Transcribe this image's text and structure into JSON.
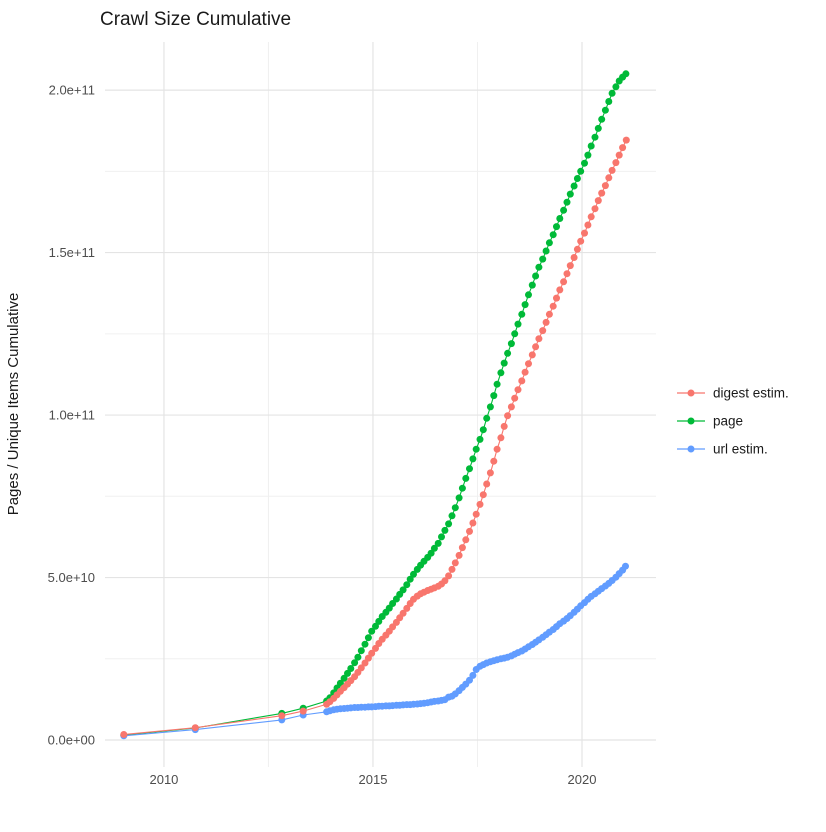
{
  "chart_data": {
    "type": "line",
    "title": "Crawl Size Cumulative",
    "xlabel": "",
    "ylabel": "Pages / Unique Items Cumulative",
    "unit": "pages, values stored in billions (1e9)",
    "grid": "on",
    "legend_position": "right",
    "xlim": [
      2008.59,
      2021.77
    ],
    "ylim_e9": [
      -8.3,
      214.8
    ],
    "x_ticks": [
      {
        "label": "2010",
        "value": 2010
      },
      {
        "label": "2015",
        "value": 2015
      },
      {
        "label": "2020",
        "value": 2020
      }
    ],
    "y_ticks": [
      {
        "label": "0.0e+00",
        "value": 0
      },
      {
        "label": "5.0e+10",
        "value": 50
      },
      {
        "label": "1.0e+11",
        "value": 100
      },
      {
        "label": "1.5e+11",
        "value": 150
      },
      {
        "label": "2.0e+11",
        "value": 200
      }
    ],
    "x_minor_ticks": [
      2012.5,
      2017.5
    ],
    "y_minor_ticks": [
      25,
      75,
      125,
      175
    ],
    "legend": {
      "items": [
        {
          "label": "digest estim.",
          "color": "#F8766D"
        },
        {
          "label": "page",
          "color": "#00BA38"
        },
        {
          "label": "url estim.",
          "color": "#619CFF"
        }
      ]
    },
    "series": [
      {
        "name": "page",
        "color": "#00BA38",
        "points": [
          [
            2009.04,
            1.5
          ],
          [
            2010.75,
            3.7
          ],
          [
            2012.82,
            8.2
          ],
          [
            2013.33,
            9.8
          ],
          [
            2013.89,
            12.0
          ],
          [
            2013.97,
            13.0
          ],
          [
            2014.06,
            14.5
          ],
          [
            2014.14,
            16.0
          ],
          [
            2014.22,
            17.5
          ],
          [
            2014.31,
            19.0
          ],
          [
            2014.39,
            20.5
          ],
          [
            2014.47,
            22.0
          ],
          [
            2014.56,
            23.8
          ],
          [
            2014.64,
            25.5
          ],
          [
            2014.72,
            27.5
          ],
          [
            2014.81,
            29.5
          ],
          [
            2014.89,
            31.5
          ],
          [
            2014.97,
            33.5
          ],
          [
            2015.06,
            35.0
          ],
          [
            2015.14,
            36.5
          ],
          [
            2015.22,
            38.0
          ],
          [
            2015.31,
            39.3
          ],
          [
            2015.39,
            40.6
          ],
          [
            2015.47,
            42.0
          ],
          [
            2015.56,
            43.4
          ],
          [
            2015.64,
            44.8
          ],
          [
            2015.72,
            46.2
          ],
          [
            2015.81,
            47.8
          ],
          [
            2015.89,
            49.5
          ],
          [
            2015.97,
            51.0
          ],
          [
            2016.06,
            52.5
          ],
          [
            2016.14,
            53.8
          ],
          [
            2016.22,
            55.0
          ],
          [
            2016.31,
            56.2
          ],
          [
            2016.39,
            57.5
          ],
          [
            2016.47,
            59.0
          ],
          [
            2016.56,
            60.5
          ],
          [
            2016.64,
            62.5
          ],
          [
            2016.72,
            64.5
          ],
          [
            2016.81,
            66.5
          ],
          [
            2016.89,
            69.0
          ],
          [
            2016.97,
            71.5
          ],
          [
            2017.06,
            74.5
          ],
          [
            2017.14,
            77.5
          ],
          [
            2017.22,
            80.5
          ],
          [
            2017.31,
            83.5
          ],
          [
            2017.39,
            86.5
          ],
          [
            2017.47,
            89.5
          ],
          [
            2017.56,
            92.5
          ],
          [
            2017.64,
            95.5
          ],
          [
            2017.72,
            99.0
          ],
          [
            2017.81,
            102.5
          ],
          [
            2017.89,
            106.0
          ],
          [
            2017.97,
            109.5
          ],
          [
            2018.06,
            113.0
          ],
          [
            2018.14,
            116.0
          ],
          [
            2018.22,
            119.0
          ],
          [
            2018.31,
            122.0
          ],
          [
            2018.39,
            125.0
          ],
          [
            2018.47,
            128.0
          ],
          [
            2018.56,
            131.0
          ],
          [
            2018.64,
            134.0
          ],
          [
            2018.72,
            137.0
          ],
          [
            2018.81,
            140.0
          ],
          [
            2018.89,
            142.8
          ],
          [
            2018.97,
            145.5
          ],
          [
            2019.06,
            148.0
          ],
          [
            2019.14,
            150.5
          ],
          [
            2019.22,
            153.0
          ],
          [
            2019.31,
            155.5
          ],
          [
            2019.39,
            158.0
          ],
          [
            2019.47,
            160.5
          ],
          [
            2019.56,
            163.0
          ],
          [
            2019.64,
            165.5
          ],
          [
            2019.72,
            168.0
          ],
          [
            2019.81,
            170.5
          ],
          [
            2019.89,
            172.8
          ],
          [
            2019.97,
            175.0
          ],
          [
            2020.06,
            177.5
          ],
          [
            2020.14,
            180.0
          ],
          [
            2020.22,
            182.8
          ],
          [
            2020.31,
            185.5
          ],
          [
            2020.39,
            188.2
          ],
          [
            2020.47,
            191.0
          ],
          [
            2020.56,
            193.8
          ],
          [
            2020.64,
            196.5
          ],
          [
            2020.72,
            199.0
          ],
          [
            2020.81,
            201.0
          ],
          [
            2020.89,
            202.8
          ],
          [
            2020.97,
            204.0
          ],
          [
            2021.05,
            205.0
          ]
        ]
      },
      {
        "name": "url estim.",
        "color": "#619CFF",
        "points": [
          [
            2009.04,
            1.3
          ],
          [
            2010.75,
            3.2
          ],
          [
            2012.82,
            6.2
          ],
          [
            2013.33,
            7.7
          ],
          [
            2013.89,
            8.7
          ],
          [
            2013.97,
            9.0
          ],
          [
            2014.06,
            9.3
          ],
          [
            2014.14,
            9.5
          ],
          [
            2014.22,
            9.6
          ],
          [
            2014.31,
            9.7
          ],
          [
            2014.39,
            9.8
          ],
          [
            2014.47,
            9.9
          ],
          [
            2014.56,
            10.0
          ],
          [
            2014.64,
            10.0
          ],
          [
            2014.72,
            10.1
          ],
          [
            2014.81,
            10.1
          ],
          [
            2014.89,
            10.2
          ],
          [
            2014.97,
            10.2
          ],
          [
            2015.06,
            10.3
          ],
          [
            2015.14,
            10.4
          ],
          [
            2015.22,
            10.4
          ],
          [
            2015.31,
            10.5
          ],
          [
            2015.39,
            10.5
          ],
          [
            2015.47,
            10.6
          ],
          [
            2015.56,
            10.7
          ],
          [
            2015.64,
            10.7
          ],
          [
            2015.72,
            10.8
          ],
          [
            2015.81,
            10.9
          ],
          [
            2015.89,
            10.9
          ],
          [
            2015.97,
            11.0
          ],
          [
            2016.06,
            11.1
          ],
          [
            2016.14,
            11.2
          ],
          [
            2016.22,
            11.3
          ],
          [
            2016.31,
            11.5
          ],
          [
            2016.39,
            11.7
          ],
          [
            2016.47,
            11.9
          ],
          [
            2016.56,
            12.0
          ],
          [
            2016.64,
            12.2
          ],
          [
            2016.72,
            12.4
          ],
          [
            2016.81,
            13.2
          ],
          [
            2016.89,
            13.5
          ],
          [
            2016.97,
            14.2
          ],
          [
            2017.06,
            15.2
          ],
          [
            2017.14,
            16.2
          ],
          [
            2017.22,
            17.2
          ],
          [
            2017.31,
            18.4
          ],
          [
            2017.39,
            19.9
          ],
          [
            2017.47,
            21.7
          ],
          [
            2017.56,
            22.7
          ],
          [
            2017.64,
            23.2
          ],
          [
            2017.72,
            23.7
          ],
          [
            2017.81,
            24.1
          ],
          [
            2017.89,
            24.4
          ],
          [
            2017.97,
            24.7
          ],
          [
            2018.06,
            25.0
          ],
          [
            2018.14,
            25.2
          ],
          [
            2018.22,
            25.5
          ],
          [
            2018.31,
            25.9
          ],
          [
            2018.39,
            26.4
          ],
          [
            2018.47,
            26.9
          ],
          [
            2018.56,
            27.4
          ],
          [
            2018.64,
            28.0
          ],
          [
            2018.72,
            28.7
          ],
          [
            2018.81,
            29.4
          ],
          [
            2018.89,
            30.1
          ],
          [
            2018.97,
            30.8
          ],
          [
            2019.06,
            31.6
          ],
          [
            2019.14,
            32.4
          ],
          [
            2019.22,
            33.2
          ],
          [
            2019.31,
            34.0
          ],
          [
            2019.39,
            34.9
          ],
          [
            2019.47,
            35.8
          ],
          [
            2019.56,
            36.6
          ],
          [
            2019.64,
            37.4
          ],
          [
            2019.72,
            38.3
          ],
          [
            2019.81,
            39.3
          ],
          [
            2019.89,
            40.3
          ],
          [
            2019.97,
            41.3
          ],
          [
            2020.06,
            42.3
          ],
          [
            2020.14,
            43.3
          ],
          [
            2020.22,
            44.2
          ],
          [
            2020.31,
            45.0
          ],
          [
            2020.39,
            45.8
          ],
          [
            2020.47,
            46.6
          ],
          [
            2020.56,
            47.4
          ],
          [
            2020.64,
            48.2
          ],
          [
            2020.72,
            49.1
          ],
          [
            2020.81,
            50.1
          ],
          [
            2020.89,
            51.2
          ],
          [
            2020.97,
            52.3
          ],
          [
            2021.04,
            53.5
          ]
        ]
      },
      {
        "name": "digest estim.",
        "color": "#F8766D",
        "points": [
          [
            2009.04,
            1.7
          ],
          [
            2010.75,
            3.8
          ],
          [
            2012.82,
            7.5
          ],
          [
            2013.33,
            8.9
          ],
          [
            2013.89,
            11.0
          ],
          [
            2013.97,
            11.8
          ],
          [
            2014.06,
            12.8
          ],
          [
            2014.14,
            13.9
          ],
          [
            2014.22,
            15.0
          ],
          [
            2014.31,
            16.1
          ],
          [
            2014.39,
            17.2
          ],
          [
            2014.47,
            18.3
          ],
          [
            2014.56,
            19.5
          ],
          [
            2014.64,
            20.8
          ],
          [
            2014.72,
            22.2
          ],
          [
            2014.81,
            23.7
          ],
          [
            2014.89,
            25.2
          ],
          [
            2014.97,
            26.7
          ],
          [
            2015.06,
            28.2
          ],
          [
            2015.14,
            29.7
          ],
          [
            2015.22,
            31.0
          ],
          [
            2015.31,
            32.3
          ],
          [
            2015.39,
            33.5
          ],
          [
            2015.47,
            34.8
          ],
          [
            2015.56,
            36.2
          ],
          [
            2015.64,
            37.6
          ],
          [
            2015.72,
            39.0
          ],
          [
            2015.81,
            40.5
          ],
          [
            2015.89,
            42.0
          ],
          [
            2015.97,
            43.3
          ],
          [
            2016.06,
            44.3
          ],
          [
            2016.14,
            45.0
          ],
          [
            2016.22,
            45.5
          ],
          [
            2016.31,
            46.0
          ],
          [
            2016.39,
            46.4
          ],
          [
            2016.47,
            46.8
          ],
          [
            2016.56,
            47.3
          ],
          [
            2016.64,
            48.0
          ],
          [
            2016.72,
            49.0
          ],
          [
            2016.81,
            50.5
          ],
          [
            2016.89,
            52.5
          ],
          [
            2016.97,
            54.5
          ],
          [
            2017.06,
            56.8
          ],
          [
            2017.14,
            59.2
          ],
          [
            2017.22,
            61.6
          ],
          [
            2017.31,
            64.2
          ],
          [
            2017.39,
            66.8
          ],
          [
            2017.47,
            69.5
          ],
          [
            2017.56,
            72.5
          ],
          [
            2017.64,
            75.5
          ],
          [
            2017.72,
            78.8
          ],
          [
            2017.81,
            82.2
          ],
          [
            2017.89,
            85.8
          ],
          [
            2017.97,
            89.5
          ],
          [
            2018.06,
            93.0
          ],
          [
            2018.14,
            96.5
          ],
          [
            2018.22,
            99.8
          ],
          [
            2018.31,
            102.5
          ],
          [
            2018.39,
            105.2
          ],
          [
            2018.47,
            107.8
          ],
          [
            2018.56,
            110.5
          ],
          [
            2018.64,
            113.2
          ],
          [
            2018.72,
            115.8
          ],
          [
            2018.81,
            118.5
          ],
          [
            2018.89,
            121.0
          ],
          [
            2018.97,
            123.5
          ],
          [
            2019.06,
            126.0
          ],
          [
            2019.14,
            128.5
          ],
          [
            2019.22,
            131.0
          ],
          [
            2019.31,
            133.5
          ],
          [
            2019.39,
            136.0
          ],
          [
            2019.47,
            138.5
          ],
          [
            2019.56,
            141.0
          ],
          [
            2019.64,
            143.5
          ],
          [
            2019.72,
            146.0
          ],
          [
            2019.81,
            148.5
          ],
          [
            2019.89,
            151.0
          ],
          [
            2019.97,
            153.5
          ],
          [
            2020.06,
            156.0
          ],
          [
            2020.14,
            158.5
          ],
          [
            2020.22,
            161.0
          ],
          [
            2020.31,
            163.5
          ],
          [
            2020.39,
            166.0
          ],
          [
            2020.47,
            168.3
          ],
          [
            2020.56,
            170.6
          ],
          [
            2020.64,
            173.0
          ],
          [
            2020.72,
            175.3
          ],
          [
            2020.81,
            177.7
          ],
          [
            2020.89,
            180.0
          ],
          [
            2020.97,
            182.3
          ],
          [
            2021.06,
            184.6
          ]
        ]
      }
    ],
    "colors": {
      "digest_estim": "#F8766D",
      "page": "#00BA38",
      "url_estim": "#619CFF",
      "grid_major": "#E4E4E4",
      "grid_minor": "#F0F0F0",
      "tick_text": "#4D4D4D"
    }
  }
}
